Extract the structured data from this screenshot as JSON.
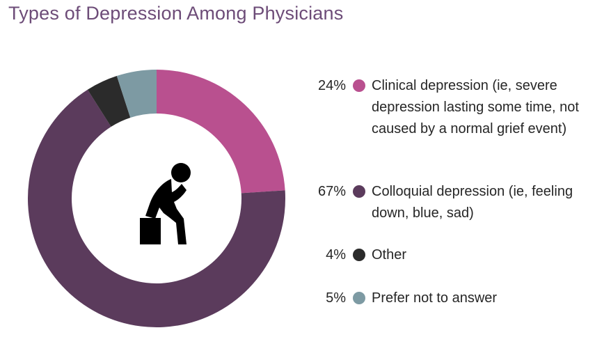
{
  "title": "Types of Depression Among Physicians",
  "chart_data": {
    "type": "pie",
    "style": "donut",
    "title": "Types of Depression Among Physicians",
    "center_icon": "thinking-person-icon",
    "slices": [
      {
        "pct_label": "24%",
        "value": 24,
        "label": "Clinical depression (ie, severe depression lasting some time, not caused by a normal grief event)",
        "color": "#b9508f"
      },
      {
        "pct_label": "67%",
        "value": 67,
        "label": "Colloquial depression (ie, feeling down, blue, sad)",
        "color": "#5b3b5c"
      },
      {
        "pct_label": "4%",
        "value": 4,
        "label": "Other",
        "color": "#2b2b2b"
      },
      {
        "pct_label": "5%",
        "value": 5,
        "label": "Prefer not to answer",
        "color": "#7d9aa3"
      }
    ]
  }
}
